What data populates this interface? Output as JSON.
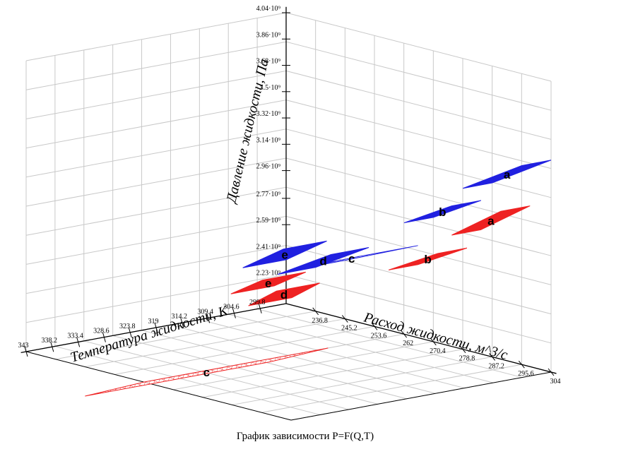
{
  "chart_data": {
    "type": "surface3d",
    "title": "График зависимости P=F(Q,T)",
    "x_axis": {
      "label": "Расход жидкости, м^3/с",
      "ticks": [
        "236.8",
        "245.2",
        "253.6",
        "262",
        "270.4",
        "278.8",
        "287.2",
        "295.6",
        "304"
      ],
      "range": [
        228.4,
        304
      ]
    },
    "y_axis": {
      "label": "Температура жидкости, К",
      "ticks": [
        "299.8",
        "304.6",
        "309.4",
        "314.2",
        "319",
        "323.8",
        "328.6",
        "333.4",
        "338.2",
        "343"
      ],
      "range": [
        295,
        343
      ]
    },
    "z_axis": {
      "label": "Давление жидкости, Па",
      "ticks": [
        "2.23·10⁹",
        "2.41·10⁹",
        "2.59·10⁹",
        "2.77·10⁹",
        "2.96·10⁹",
        "3.14·10⁹",
        "3.32·10⁹",
        "3.5·10⁹",
        "3.68·10⁹",
        "3.86·10⁹",
        "4.04·10⁹"
      ],
      "range": [
        2050000000.0,
        4040000000.0
      ]
    },
    "series": [
      {
        "color": "#2020e0",
        "planes": [
          {
            "label": "a",
            "q": [
              287.2,
              304
            ],
            "t": [
              295,
              300.4
            ],
            "p": [
              3240000000.0,
              3500000000.0
            ]
          },
          {
            "label": "b",
            "q": [
              270.4,
              284
            ],
            "t": [
              295,
              300.4
            ],
            "p": [
              2900000000.0,
              3100000000.0
            ]
          },
          {
            "label": "c",
            "q": [
              245.2,
              266
            ],
            "t": [
              295,
              306
            ],
            "p": [
              2450000000.0,
              2680000000.0
            ]
          },
          {
            "label": "d",
            "q": [
              236.8,
              252
            ],
            "t": [
              295,
              302
            ],
            "p": [
              2350000000.0,
              2580000000.0
            ]
          },
          {
            "label": "e",
            "q": [
              228.4,
              240
            ],
            "t": [
              295,
              303
            ],
            "p": [
              2350000000.0,
              2550000000.0
            ]
          }
        ]
      },
      {
        "color": "#ee2222",
        "planes": [
          {
            "label": "a",
            "q": [
              284,
              298
            ],
            "t": [
              295,
              300.4
            ],
            "p": [
              2900000000.0,
              3150000000.0
            ]
          },
          {
            "label": "b",
            "q": [
              266,
              280
            ],
            "t": [
              295,
              300.4
            ],
            "p": [
              2550000000.0,
              2750000000.0
            ]
          },
          {
            "label": "c",
            "q": [
              245.2,
              262
            ],
            "t": [
              309,
              343
            ],
            "p": [
              1850000000.0,
              2050000000.0
            ]
          },
          {
            "label": "d",
            "q": [
              230,
              238
            ],
            "t": [
              295,
              303
            ],
            "p": [
              2100000000.0,
              2250000000.0
            ]
          },
          {
            "label": "e",
            "q": [
              225,
              234
            ],
            "t": [
              295,
              303
            ],
            "p": [
              2150000000.0,
              2300000000.0
            ]
          }
        ]
      }
    ],
    "grid": true
  },
  "colors": {
    "blue": "#2020e0",
    "red": "#ee2222",
    "grid": "#c8c8c8"
  }
}
